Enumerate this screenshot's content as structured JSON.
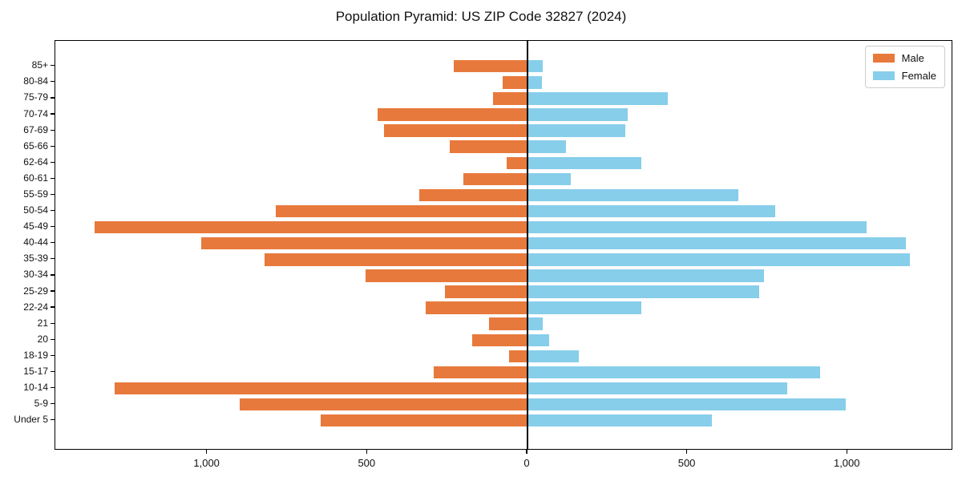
{
  "title": "Population Pyramid: US ZIP Code 32827 (2024)",
  "legend": {
    "male_label": "Male",
    "female_label": "Female"
  },
  "colors": {
    "male": "#E8793C",
    "female": "#87CEEB",
    "axis": "#000000",
    "legend_border": "#cccccc",
    "background": "#ffffff"
  },
  "chart_data": {
    "type": "bar",
    "variant": "population-pyramid",
    "title": "Population Pyramid: US ZIP Code 32827 (2024)",
    "xlabel": "",
    "ylabel": "",
    "grid": false,
    "legend_position": "upper right",
    "categories_top_to_bottom": [
      "85+",
      "80-84",
      "75-79",
      "70-74",
      "67-69",
      "65-66",
      "62-64",
      "60-61",
      "55-59",
      "50-54",
      "45-49",
      "40-44",
      "35-39",
      "30-34",
      "25-29",
      "22-24",
      "21",
      "20",
      "18-19",
      "15-17",
      "10-14",
      "5-9",
      "Under 5"
    ],
    "series": [
      {
        "name": "Male",
        "side": "left",
        "color": "#E8793C",
        "values": [
          230,
          78,
          107,
          469,
          447,
          242,
          66,
          200,
          338,
          786,
          1353,
          1020,
          822,
          507,
          258,
          319,
          119,
          172,
          58,
          294,
          1290,
          898,
          645
        ]
      },
      {
        "name": "Female",
        "side": "right",
        "color": "#87CEEB",
        "values": [
          48,
          45,
          438,
          313,
          305,
          120,
          356,
          135,
          658,
          774,
          1059,
          1183,
          1195,
          739,
          724,
          355,
          47,
          69,
          160,
          914,
          812,
          995,
          577
        ]
      }
    ],
    "x_tick_values": [
      -1000,
      -500,
      0,
      500,
      1000
    ],
    "x_tick_labels": [
      "1,000",
      "500",
      "0",
      "500",
      "1,000"
    ],
    "xlim": [
      -1475,
      1330
    ]
  }
}
